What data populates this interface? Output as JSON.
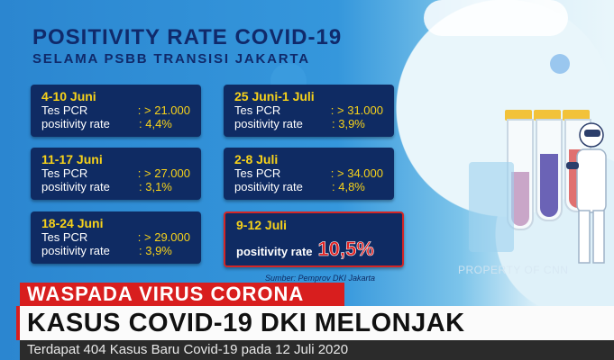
{
  "title": {
    "line1": "POSITIVITY RATE COVID-19",
    "line2": "SELAMA PSBB TRANSISI JAKARTA"
  },
  "cards": [
    {
      "date": "4-10 Juni",
      "pcr_label": "Tes PCR",
      "pcr_value": ": > 21.000",
      "rate_label": "positivity rate",
      "rate_value": ": 4,4%"
    },
    {
      "date": "11-17 Juni",
      "pcr_label": "Tes PCR",
      "pcr_value": ": > 27.000",
      "rate_label": "positivity rate",
      "rate_value": ": 3,1%"
    },
    {
      "date": "18-24 Juni",
      "pcr_label": "Tes PCR",
      "pcr_value": ": > 29.000",
      "rate_label": "positivity rate",
      "rate_value": ": 3,9%"
    },
    {
      "date": "25 Juni-1 Juli",
      "pcr_label": "Tes PCR",
      "pcr_value": ": > 31.000",
      "rate_label": "positivity rate",
      "rate_value": ": 3,9%"
    },
    {
      "date": "2-8 Juli",
      "pcr_label": "Tes PCR",
      "pcr_value": ": > 34.000",
      "rate_label": "positivity rate",
      "rate_value": ": 4,8%"
    }
  ],
  "highlight": {
    "date": "9-12 Juli",
    "rate_label": "positivity rate",
    "rate_value": "10,5%"
  },
  "source": "Sumber: Pemprov DKI Jakarta",
  "watermark": "PROPERTY OF CNN",
  "ticker": {
    "kicker": "WASPADA VIRUS CORONA",
    "headline": "KASUS COVID-19 DKI MELONJAK",
    "subline": "Terdapat 404 Kasus Baru Covid-19 pada 12 Juli 2020"
  },
  "colors": {
    "background_blue": "#2f8fd6",
    "card_navy": "#0f2b63",
    "accent_yellow": "#f7d21a",
    "alert_red": "#e12121"
  }
}
